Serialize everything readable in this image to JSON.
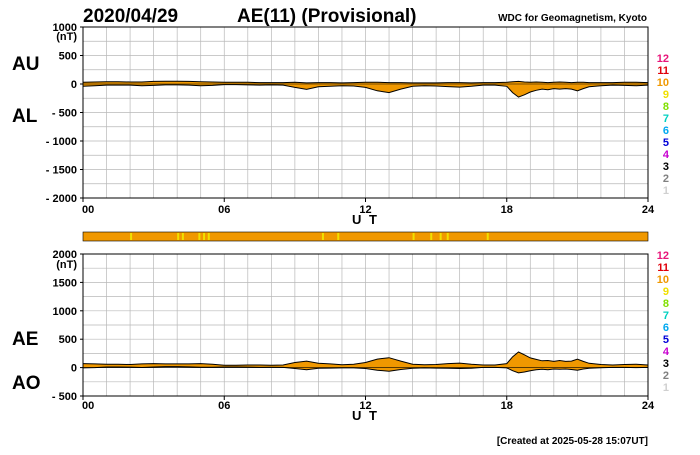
{
  "header": {
    "date": "2020/04/29",
    "title": "AE(11) (Provisional)",
    "source": "WDC for Geomagnetism, Kyoto"
  },
  "footer": {
    "created": "[Created at 2025-05-28 15:07UT]"
  },
  "station_legend": {
    "labels": [
      "12",
      "11",
      "10",
      "9",
      "8",
      "7",
      "6",
      "5",
      "4",
      "3",
      "2",
      "1"
    ],
    "colors": [
      "#e8157a",
      "#e0000a",
      "#f09800",
      "#f0e000",
      "#80e000",
      "#00d0c0",
      "#00a8f0",
      "#0000d8",
      "#c800d0",
      "#000000",
      "#808080",
      "#d0d0d0"
    ]
  },
  "status_bar": {
    "fill": "#f09800",
    "tick_color": "#f0e000",
    "ticks_hours": [
      2.0,
      4.0,
      4.2,
      4.9,
      5.1,
      5.3,
      10.15,
      10.8,
      14.0,
      14.75,
      15.15,
      15.45,
      17.15
    ]
  },
  "chart_data": [
    {
      "type": "area",
      "id": "au-al",
      "series_labels": [
        "AU",
        "AL"
      ],
      "ylabel": "(nT)",
      "xlabel": "U T",
      "xlim": [
        0,
        24
      ],
      "ylim": [
        -2000,
        1000
      ],
      "xticks": [
        0,
        6,
        12,
        18,
        24
      ],
      "xtick_labels": [
        "00",
        "06",
        "12",
        "18",
        "24"
      ],
      "yticks": [
        1000,
        500,
        0,
        -500,
        -1000,
        -1500,
        -2000
      ],
      "ytick_labels": [
        "1000",
        "500",
        "0",
        "- 500",
        "- 1000",
        "- 1500",
        "- 2000"
      ],
      "grid": true,
      "fill_color": "#f09800",
      "hours": [
        0,
        0.5,
        1,
        1.5,
        2,
        2.5,
        3,
        3.5,
        4,
        4.5,
        5,
        5.5,
        6,
        6.5,
        7,
        7.5,
        8,
        8.5,
        9,
        9.5,
        10,
        10.5,
        11,
        11.5,
        12,
        12.5,
        13,
        13.5,
        14,
        14.5,
        15,
        15.5,
        16,
        16.5,
        17,
        17.5,
        18,
        18.25,
        18.5,
        18.75,
        19,
        19.25,
        19.5,
        19.75,
        20,
        20.25,
        20.5,
        20.75,
        21,
        21.25,
        21.5,
        22,
        22.5,
        23,
        23.5,
        24
      ],
      "upper_nT": [
        30,
        35,
        40,
        40,
        35,
        35,
        45,
        50,
        50,
        45,
        40,
        35,
        30,
        30,
        30,
        25,
        25,
        25,
        30,
        20,
        25,
        25,
        20,
        25,
        30,
        30,
        25,
        25,
        20,
        20,
        20,
        25,
        25,
        20,
        25,
        25,
        30,
        40,
        45,
        35,
        30,
        35,
        30,
        25,
        30,
        35,
        30,
        25,
        30,
        30,
        25,
        25,
        25,
        30,
        30,
        25
      ],
      "lower_nT": [
        -40,
        -30,
        -20,
        -20,
        -20,
        -30,
        -25,
        -15,
        -15,
        -20,
        -30,
        -25,
        -10,
        -10,
        -15,
        -20,
        -15,
        -20,
        -60,
        -95,
        -50,
        -40,
        -30,
        -35,
        -60,
        -120,
        -150,
        -90,
        -40,
        -30,
        -35,
        -45,
        -55,
        -40,
        -20,
        -20,
        -40,
        -150,
        -230,
        -190,
        -140,
        -110,
        -90,
        -100,
        -80,
        -90,
        -80,
        -90,
        -120,
        -80,
        -50,
        -30,
        -20,
        -25,
        -30,
        -20
      ]
    },
    {
      "type": "area",
      "id": "ae-ao",
      "series_labels": [
        "AE",
        "AO"
      ],
      "ylabel": "(nT)",
      "xlabel": "U T",
      "xlim": [
        0,
        24
      ],
      "ylim": [
        -500,
        2000
      ],
      "xticks": [
        0,
        6,
        12,
        18,
        24
      ],
      "xtick_labels": [
        "00",
        "06",
        "12",
        "18",
        "24"
      ],
      "yticks": [
        2000,
        1500,
        1000,
        500,
        0,
        -500
      ],
      "ytick_labels": [
        "2000",
        "1500",
        "1000",
        "500",
        "0",
        "- 500"
      ],
      "grid": true,
      "fill_color": "#f09800",
      "hours": [
        0,
        0.5,
        1,
        1.5,
        2,
        2.5,
        3,
        3.5,
        4,
        4.5,
        5,
        5.5,
        6,
        6.5,
        7,
        7.5,
        8,
        8.5,
        9,
        9.5,
        10,
        10.5,
        11,
        11.5,
        12,
        12.5,
        13,
        13.5,
        14,
        14.5,
        15,
        15.5,
        16,
        16.5,
        17,
        17.5,
        18,
        18.25,
        18.5,
        18.75,
        19,
        19.25,
        19.5,
        19.75,
        20,
        20.25,
        20.5,
        20.75,
        21,
        21.25,
        21.5,
        22,
        22.5,
        23,
        23.5,
        24
      ],
      "upper_nT": [
        70,
        65,
        60,
        60,
        55,
        65,
        70,
        65,
        65,
        65,
        70,
        60,
        40,
        40,
        45,
        45,
        40,
        45,
        90,
        115,
        75,
        65,
        50,
        60,
        90,
        150,
        175,
        115,
        60,
        50,
        55,
        70,
        80,
        60,
        45,
        45,
        70,
        190,
        275,
        225,
        170,
        145,
        120,
        125,
        110,
        125,
        110,
        115,
        150,
        110,
        75,
        55,
        45,
        55,
        60,
        45
      ],
      "lower_nT": [
        -5,
        0,
        10,
        10,
        8,
        2,
        10,
        18,
        18,
        12,
        5,
        5,
        10,
        10,
        8,
        3,
        5,
        3,
        -15,
        -38,
        -13,
        -8,
        -5,
        -5,
        -15,
        -45,
        -63,
        -33,
        -10,
        -5,
        -8,
        -10,
        -15,
        -10,
        3,
        3,
        -5,
        -55,
        -93,
        -78,
        -55,
        -38,
        -30,
        -38,
        -25,
        -28,
        -25,
        -33,
        -45,
        -25,
        -13,
        -3,
        3,
        3,
        0,
        3
      ]
    }
  ]
}
